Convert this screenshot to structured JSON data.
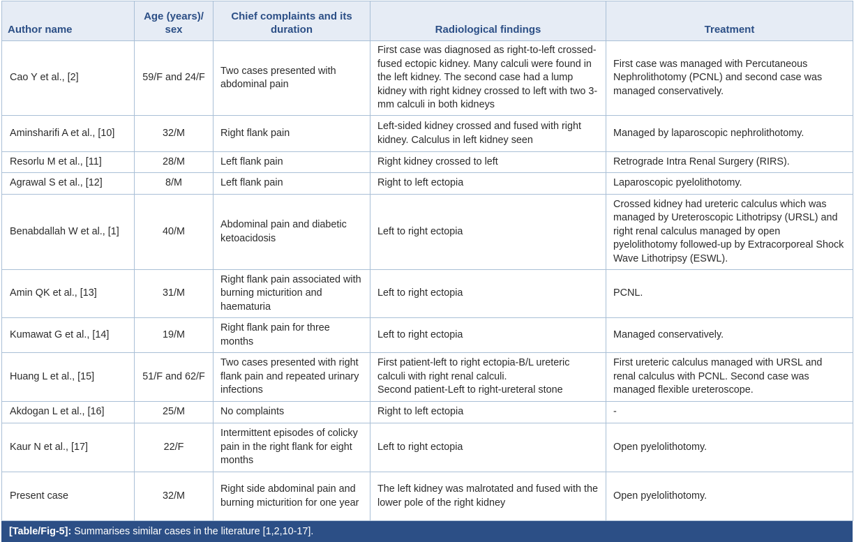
{
  "headers": {
    "author": "Author name",
    "age": "Age (years)/ sex",
    "complaints": "Chief complaints and its duration",
    "radiology": "Radiological findings",
    "treatment": "Treatment"
  },
  "rows": [
    {
      "author": "Cao Y et al., [2]",
      "age": "59/F and 24/F",
      "complaints": "Two cases presented with abdominal pain",
      "radiology": "First case was diagnosed as right-to-left crossed-fused ectopic kidney. Many calculi were found in the left kidney. The second case had a lump kidney with right kidney crossed to left with two 3-mm calculi in both kidneys",
      "treatment": "First case was managed with Percutaneous Nephrolithotomy (PCNL) and second case was managed conservatively."
    },
    {
      "author": "Aminsharifi A et al., [10]",
      "age": "32/M",
      "complaints": "Right flank pain",
      "radiology": "Left-sided kidney crossed and fused with right kidney. Calculus in left kidney seen",
      "treatment": "Managed by laparoscopic nephrolithotomy."
    },
    {
      "author": "Resorlu M et al., [11]",
      "age": "28/M",
      "complaints": "Left flank pain",
      "radiology": "Right kidney crossed to left",
      "treatment": "Retrograde Intra Renal Surgery (RIRS)."
    },
    {
      "author": "Agrawal S et al., [12]",
      "age": "8/M",
      "complaints": "Left flank pain",
      "radiology": "Right to left ectopia",
      "treatment": "Laparoscopic pyelolithotomy."
    },
    {
      "author": "Benabdallah W et al., [1]",
      "age": "40/M",
      "complaints": "Abdominal pain and diabetic ketoacidosis",
      "radiology": "Left to right ectopia",
      "treatment": "Crossed kidney had ureteric calculus which was managed by Ureteroscopic Lithotripsy (URSL) and right renal calculus managed by open pyelolithotomy followed-up by Extracorporeal Shock Wave Lithotripsy (ESWL)."
    },
    {
      "author": "Amin QK et al., [13]",
      "age": "31/M",
      "complaints": "Right flank pain associated with burning micturition and haematuria",
      "radiology": "Left to right ectopia",
      "treatment": "PCNL."
    },
    {
      "author": "Kumawat G et al., [14]",
      "age": "19/M",
      "complaints": "Right flank pain for three months",
      "radiology": "Left to right ectopia",
      "treatment": "Managed conservatively."
    },
    {
      "author": "Huang L et al., [15]",
      "age": "51/F and 62/F",
      "complaints": "Two cases presented with right flank pain and repeated urinary infections",
      "radiology_lines": [
        "First patient-left to right ectopia-B/L ureteric calculi with right renal calculi.",
        "Second patient-Left to right-ureteral stone"
      ],
      "treatment": "First ureteric calculus managed with URSL and renal calculus with PCNL. Second case was managed flexible ureteroscope."
    },
    {
      "author": "Akdogan L et al., [16]",
      "age": "25/M",
      "complaints": "No complaints",
      "radiology": "Right to left ectopia",
      "treatment": "-"
    },
    {
      "author": "Kaur N et al., [17]",
      "age": "22/F",
      "complaints": "Intermittent episodes of colicky pain in the right flank for eight months",
      "radiology": "Left to right ectopia",
      "treatment": "Open pyelolithotomy."
    },
    {
      "author": "Present case",
      "age": "32/M",
      "complaints": "Right side abdominal pain and burning micturition for one year",
      "radiology": "The left kidney was malrotated and fused with the lower pole of the right kidney",
      "treatment": "Open pyelolithotomy."
    }
  ],
  "caption": {
    "label": "[Table/Fig-5]:",
    "text": "Summarises similar cases in the literature [1,2,10-17]."
  }
}
